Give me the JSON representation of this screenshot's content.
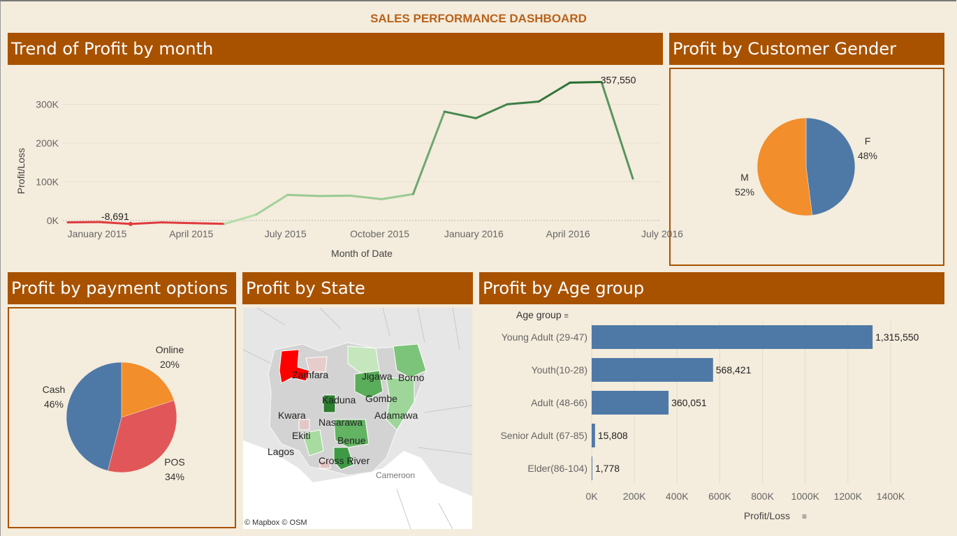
{
  "dashboard": {
    "title": "SALES PERFORMANCE DASHBOARD"
  },
  "panels": {
    "trend": {
      "title": "Trend of Profit by month"
    },
    "gender": {
      "title": "Profit by Customer Gender"
    },
    "payment": {
      "title": "Profit by payment options"
    },
    "state": {
      "title": "Profit by State",
      "attribution": "© Mapbox © OSM"
    },
    "age": {
      "title": "Profit by Age group",
      "row_header": "Age group",
      "sort_icon": "sort-descending-icon"
    }
  },
  "colors": {
    "accent": "#a85200",
    "title": "#b8621b",
    "background": "#f4ecdc",
    "blue": "#4e79a7",
    "orange": "#f28e2b",
    "red": "#e15759",
    "positive": "#2e7d32",
    "negative": "#e0202a"
  },
  "chart_data": [
    {
      "type": "line",
      "id": "trend",
      "xlabel": "Month of Date",
      "ylabel": "Profit/Loss",
      "x": [
        "2015-01",
        "2015-02",
        "2015-03",
        "2015-04",
        "2015-05",
        "2015-06",
        "2015-07",
        "2015-08",
        "2015-09",
        "2015-10",
        "2015-11",
        "2015-12",
        "2016-01",
        "2016-02",
        "2016-03",
        "2016-04",
        "2016-05",
        "2016-06",
        "2016-07"
      ],
      "values": [
        -5000,
        -4000,
        -9000,
        -5000,
        -7000,
        -8691,
        15000,
        66000,
        63000,
        64000,
        55000,
        68000,
        281000,
        264000,
        300000,
        307000,
        356000,
        357550,
        108000
      ],
      "x_ticks": [
        "January 2015",
        "April 2015",
        "July 2015",
        "October 2015",
        "January 2016",
        "April 2016",
        "July 2016"
      ],
      "y_ticks": [
        "0K",
        "100K",
        "200K",
        "300K"
      ],
      "ylim": [
        -20000,
        380000
      ],
      "labels": [
        {
          "text": "-8,691"
        },
        {
          "text": "357,550"
        }
      ],
      "color": "diverging red-green by value"
    },
    {
      "type": "pie",
      "id": "gender",
      "slices": [
        {
          "label": "F",
          "pct": "48%",
          "value": 48,
          "color": "#4e79a7"
        },
        {
          "label": "M",
          "pct": "52%",
          "value": 52,
          "color": "#f28e2b"
        }
      ]
    },
    {
      "type": "pie",
      "id": "payment",
      "slices": [
        {
          "label": "Online",
          "pct": "20%",
          "value": 20,
          "color": "#f28e2b"
        },
        {
          "label": "POS",
          "pct": "34%",
          "value": 34,
          "color": "#e15759"
        },
        {
          "label": "Cash",
          "pct": "46%",
          "value": 46,
          "color": "#4e79a7"
        }
      ]
    },
    {
      "type": "bar",
      "id": "age",
      "orientation": "horizontal",
      "categories": [
        "Young Adult (29-47)",
        "Youth(10-28)",
        "Adult (48-66)",
        "Senior Adult (67-85)",
        "Elder(86-104)"
      ],
      "values": [
        1315550,
        568421,
        360051,
        15808,
        1778
      ],
      "value_labels": [
        "1,315,550",
        "568,421",
        "360,051",
        "15,808",
        "1,778"
      ],
      "xlabel": "Profit/Loss",
      "x_ticks": [
        "0K",
        "200K",
        "400K",
        "600K",
        "800K",
        "1000K",
        "1200K",
        "1400K"
      ],
      "xlim": [
        0,
        1400000
      ]
    },
    {
      "type": "map",
      "id": "state",
      "labels": [
        "Zamfara",
        "Jigawa",
        "Borno",
        "Kaduna",
        "Gombe",
        "Kwara",
        "Adamawa",
        "Nasarawa",
        "Ekiti",
        "Benue",
        "Lagos",
        "Cross River",
        "Cameroon"
      ]
    }
  ]
}
